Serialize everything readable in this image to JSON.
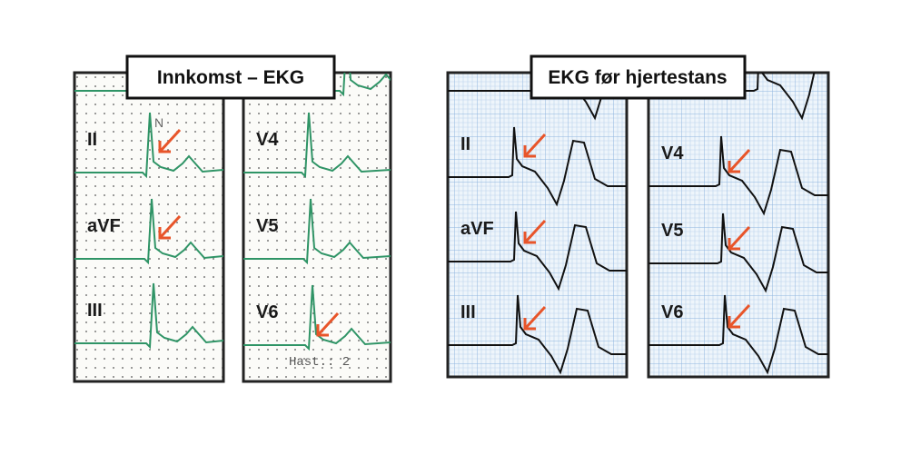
{
  "panels": [
    {
      "title": "Innkomst – EKG",
      "strips": [
        {
          "leads": [
            "II",
            "aVF",
            "III"
          ]
        },
        {
          "leads": [
            "V4",
            "V5",
            "V6"
          ]
        }
      ]
    },
    {
      "title": "EKG før hjertestans",
      "strips": [
        {
          "leads": [
            "II",
            "aVF",
            "III"
          ]
        },
        {
          "leads": [
            "V4",
            "V5",
            "V6"
          ]
        }
      ]
    }
  ],
  "annotations": {
    "marker": "N",
    "speed": "Hast.:  2"
  }
}
